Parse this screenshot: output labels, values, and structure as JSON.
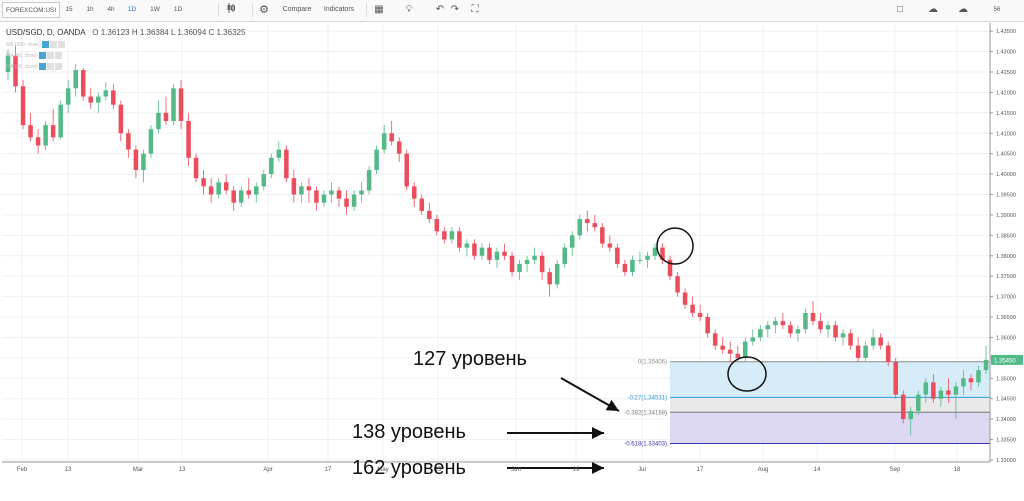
{
  "toolbar": {
    "symbol": "FOREXCOM:USI",
    "timeframes": [
      "15",
      "1h",
      "4h",
      "1D",
      "1W",
      "1D"
    ],
    "active_timeframe_index": 3,
    "compare_label": "Compare",
    "indicators_label": "Indicators",
    "right_label": "56"
  },
  "legend": {
    "title": "USD/SGD, D, OANDA",
    "ohlc": "O 1.36123  H 1.36384  L 1.36094  C 1.36325",
    "indicators": [
      "MA (200, close)",
      "MA (50, close)",
      "MA (20, close)"
    ]
  },
  "annotations": {
    "a127": "127 уровень",
    "a138": "138 уровень",
    "a162": "162 уровень"
  },
  "chart_data": {
    "type": "candlestick",
    "symbol": "USD/SGD",
    "price_scale": [
      "1.43500",
      "1.43000",
      "1.42500",
      "1.42000",
      "1.41500",
      "1.41000",
      "1.40500",
      "1.40000",
      "1.39500",
      "1.39000",
      "1.38500",
      "1.38000",
      "1.37500",
      "1.37000",
      "1.36500",
      "1.36000",
      "1.35500",
      "1.35000",
      "1.34500",
      "1.34000",
      "1.33500",
      "1.33000"
    ],
    "y_range": [
      1.3295,
      1.437
    ],
    "x_labels": [
      "Feb",
      "13",
      "Mar",
      "13",
      "Apr",
      "17",
      "May",
      "15",
      "Jun",
      "19",
      "Jul",
      "17",
      "Aug",
      "14",
      "Sep",
      "18"
    ],
    "last_price": "1.35450",
    "colors": {
      "up": "#53b987",
      "down": "#eb4d5c",
      "fib_zone_a": "#d6ecf8",
      "fib_zone_b": "#e9e9e9",
      "fib_zone_c": "#dcd8f3",
      "fib_line_0": "#8a8a8a",
      "fib_line_027": "#2a9bd7",
      "fib_line_0382": "#777777",
      "fib_line_0618": "#3a34c0"
    },
    "fibonacci": [
      {
        "ratio": "0",
        "label": "0(1.35406)",
        "price": 1.35406
      },
      {
        "ratio": "-0.27",
        "label": "-0.27(1.34531)",
        "price": 1.34531
      },
      {
        "ratio": "-0.382",
        "label": "-0.382(1.34168)",
        "price": 1.34168
      },
      {
        "ratio": "-0.618",
        "label": "-0.618(1.33403)",
        "price": 1.33403
      }
    ],
    "candles": [
      [
        1.425,
        1.4305,
        1.423,
        1.429
      ],
      [
        1.429,
        1.4315,
        1.42,
        1.4215
      ],
      [
        1.4215,
        1.423,
        1.411,
        1.412
      ],
      [
        1.412,
        1.415,
        1.408,
        1.409
      ],
      [
        1.409,
        1.411,
        1.405,
        1.407
      ],
      [
        1.407,
        1.413,
        1.406,
        1.412
      ],
      [
        1.412,
        1.416,
        1.408,
        1.409
      ],
      [
        1.409,
        1.418,
        1.4085,
        1.417
      ],
      [
        1.417,
        1.423,
        1.415,
        1.421
      ],
      [
        1.421,
        1.427,
        1.419,
        1.4255
      ],
      [
        1.4255,
        1.426,
        1.418,
        1.419
      ],
      [
        1.419,
        1.421,
        1.416,
        1.4175
      ],
      [
        1.4175,
        1.42,
        1.415,
        1.419
      ],
      [
        1.419,
        1.4225,
        1.418,
        1.4205
      ],
      [
        1.4205,
        1.422,
        1.416,
        1.417
      ],
      [
        1.417,
        1.418,
        1.408,
        1.41
      ],
      [
        1.41,
        1.411,
        1.404,
        1.406
      ],
      [
        1.406,
        1.407,
        1.399,
        1.401
      ],
      [
        1.401,
        1.406,
        1.398,
        1.405
      ],
      [
        1.405,
        1.412,
        1.404,
        1.411
      ],
      [
        1.411,
        1.418,
        1.41,
        1.415
      ],
      [
        1.415,
        1.419,
        1.412,
        1.413
      ],
      [
        1.413,
        1.422,
        1.412,
        1.421
      ],
      [
        1.421,
        1.423,
        1.411,
        1.413
      ],
      [
        1.413,
        1.415,
        1.402,
        1.404
      ],
      [
        1.404,
        1.405,
        1.398,
        1.399
      ],
      [
        1.399,
        1.401,
        1.395,
        1.397
      ],
      [
        1.397,
        1.399,
        1.393,
        1.395
      ],
      [
        1.395,
        1.399,
        1.394,
        1.398
      ],
      [
        1.398,
        1.4,
        1.395,
        1.396
      ],
      [
        1.396,
        1.397,
        1.391,
        1.393
      ],
      [
        1.393,
        1.397,
        1.392,
        1.396
      ],
      [
        1.396,
        1.399,
        1.394,
        1.395
      ],
      [
        1.395,
        1.398,
        1.393,
        1.397
      ],
      [
        1.397,
        1.401,
        1.396,
        1.4
      ],
      [
        1.4,
        1.405,
        1.399,
        1.404
      ],
      [
        1.404,
        1.408,
        1.403,
        1.406
      ],
      [
        1.406,
        1.407,
        1.398,
        1.399
      ],
      [
        1.399,
        1.401,
        1.393,
        1.395
      ],
      [
        1.395,
        1.398,
        1.393,
        1.397
      ],
      [
        1.397,
        1.399,
        1.393,
        1.396
      ],
      [
        1.396,
        1.397,
        1.391,
        1.393
      ],
      [
        1.393,
        1.396,
        1.392,
        1.395
      ],
      [
        1.395,
        1.398,
        1.393,
        1.396
      ],
      [
        1.396,
        1.397,
        1.392,
        1.394
      ],
      [
        1.394,
        1.396,
        1.39,
        1.392
      ],
      [
        1.392,
        1.396,
        1.391,
        1.395
      ],
      [
        1.395,
        1.398,
        1.393,
        1.396
      ],
      [
        1.396,
        1.402,
        1.395,
        1.401
      ],
      [
        1.401,
        1.407,
        1.4,
        1.406
      ],
      [
        1.406,
        1.412,
        1.405,
        1.41
      ],
      [
        1.41,
        1.413,
        1.407,
        1.408
      ],
      [
        1.408,
        1.409,
        1.403,
        1.405
      ],
      [
        1.405,
        1.406,
        1.396,
        1.397
      ],
      [
        1.397,
        1.398,
        1.392,
        1.394
      ],
      [
        1.394,
        1.395,
        1.39,
        1.391
      ],
      [
        1.391,
        1.393,
        1.388,
        1.389
      ],
      [
        1.389,
        1.39,
        1.385,
        1.386
      ],
      [
        1.386,
        1.387,
        1.383,
        1.384
      ],
      [
        1.384,
        1.387,
        1.383,
        1.386
      ],
      [
        1.386,
        1.387,
        1.381,
        1.382
      ],
      [
        1.382,
        1.384,
        1.38,
        1.383
      ],
      [
        1.383,
        1.384,
        1.379,
        1.38
      ],
      [
        1.38,
        1.383,
        1.379,
        1.382
      ],
      [
        1.382,
        1.383,
        1.378,
        1.379
      ],
      [
        1.379,
        1.382,
        1.377,
        1.381
      ],
      [
        1.381,
        1.383,
        1.379,
        1.38
      ],
      [
        1.38,
        1.381,
        1.375,
        1.376
      ],
      [
        1.376,
        1.379,
        1.374,
        1.378
      ],
      [
        1.378,
        1.38,
        1.376,
        1.379
      ],
      [
        1.379,
        1.382,
        1.378,
        1.38
      ],
      [
        1.38,
        1.381,
        1.374,
        1.376
      ],
      [
        1.376,
        1.377,
        1.37,
        1.373
      ],
      [
        1.373,
        1.379,
        1.372,
        1.378
      ],
      [
        1.378,
        1.383,
        1.377,
        1.382
      ],
      [
        1.382,
        1.386,
        1.38,
        1.385
      ],
      [
        1.385,
        1.39,
        1.384,
        1.389
      ],
      [
        1.389,
        1.391,
        1.386,
        1.388
      ],
      [
        1.388,
        1.39,
        1.386,
        1.387
      ],
      [
        1.387,
        1.388,
        1.382,
        1.383
      ],
      [
        1.383,
        1.385,
        1.381,
        1.382
      ],
      [
        1.382,
        1.383,
        1.377,
        1.378
      ],
      [
        1.378,
        1.379,
        1.375,
        1.376
      ],
      [
        1.376,
        1.38,
        1.375,
        1.379
      ],
      [
        1.379,
        1.381,
        1.378,
        1.379
      ],
      [
        1.379,
        1.381,
        1.377,
        1.38
      ],
      [
        1.38,
        1.383,
        1.379,
        1.382
      ],
      [
        1.382,
        1.383,
        1.378,
        1.379
      ],
      [
        1.379,
        1.38,
        1.374,
        1.375
      ],
      [
        1.375,
        1.376,
        1.37,
        1.371
      ],
      [
        1.371,
        1.372,
        1.367,
        1.368
      ],
      [
        1.368,
        1.37,
        1.365,
        1.366
      ],
      [
        1.366,
        1.368,
        1.364,
        1.365
      ],
      [
        1.365,
        1.366,
        1.36,
        1.361
      ],
      [
        1.361,
        1.362,
        1.357,
        1.358
      ],
      [
        1.358,
        1.36,
        1.356,
        1.357
      ],
      [
        1.357,
        1.359,
        1.354,
        1.356
      ],
      [
        1.356,
        1.358,
        1.354,
        1.355
      ],
      [
        1.355,
        1.36,
        1.354,
        1.359
      ],
      [
        1.359,
        1.362,
        1.358,
        1.36
      ],
      [
        1.36,
        1.363,
        1.359,
        1.362
      ],
      [
        1.362,
        1.364,
        1.36,
        1.363
      ],
      [
        1.363,
        1.365,
        1.361,
        1.364
      ],
      [
        1.364,
        1.366,
        1.362,
        1.363
      ],
      [
        1.363,
        1.364,
        1.36,
        1.361
      ],
      [
        1.361,
        1.363,
        1.359,
        1.362
      ],
      [
        1.362,
        1.367,
        1.361,
        1.366
      ],
      [
        1.366,
        1.369,
        1.363,
        1.364
      ],
      [
        1.364,
        1.366,
        1.361,
        1.362
      ],
      [
        1.362,
        1.364,
        1.36,
        1.363
      ],
      [
        1.363,
        1.364,
        1.359,
        1.36
      ],
      [
        1.36,
        1.362,
        1.358,
        1.361
      ],
      [
        1.361,
        1.362,
        1.357,
        1.358
      ],
      [
        1.358,
        1.36,
        1.354,
        1.355
      ],
      [
        1.355,
        1.359,
        1.354,
        1.358
      ],
      [
        1.358,
        1.362,
        1.357,
        1.36
      ],
      [
        1.36,
        1.361,
        1.357,
        1.358
      ],
      [
        1.358,
        1.359,
        1.353,
        1.354
      ],
      [
        1.354,
        1.355,
        1.345,
        1.346
      ],
      [
        1.346,
        1.347,
        1.339,
        1.34
      ],
      [
        1.34,
        1.343,
        1.336,
        1.342
      ],
      [
        1.342,
        1.347,
        1.341,
        1.346
      ],
      [
        1.346,
        1.35,
        1.344,
        1.349
      ],
      [
        1.349,
        1.351,
        1.344,
        1.345
      ],
      [
        1.345,
        1.348,
        1.343,
        1.347
      ],
      [
        1.347,
        1.35,
        1.344,
        1.346
      ],
      [
        1.346,
        1.349,
        1.34,
        1.348
      ],
      [
        1.348,
        1.352,
        1.346,
        1.35
      ],
      [
        1.35,
        1.351,
        1.347,
        1.349
      ],
      [
        1.349,
        1.353,
        1.348,
        1.352
      ],
      [
        1.352,
        1.358,
        1.351,
        1.3545
      ]
    ]
  }
}
